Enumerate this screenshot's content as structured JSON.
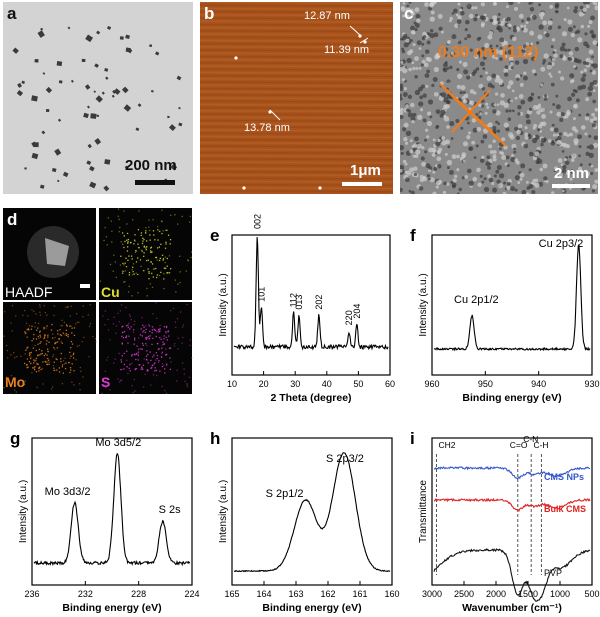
{
  "figure": {
    "panel_a": {
      "label": "a",
      "scale_bar": "200 nm"
    },
    "panel_b": {
      "label": "b",
      "scale_bar": "1μm",
      "measure_1": "12.87 nm",
      "measure_2": "11.39 nm",
      "measure_3": "13.78 nm"
    },
    "panel_c": {
      "label": "c",
      "scale_bar": "2 nm",
      "lattice": "0.30 nm (112)"
    },
    "panel_d": {
      "label": "d",
      "tiles": [
        "HAADF",
        "Cu",
        "Mo",
        "S"
      ],
      "colors": {
        "Cu": "#dede30",
        "Mo": "#e8821e",
        "S": "#e23ad8"
      }
    }
  },
  "chart_data": [
    {
      "id": "e",
      "type": "line",
      "title": "",
      "xlabel": "2 Theta (degree)",
      "ylabel": "Intensity (a.u.)",
      "xlim": [
        10,
        60
      ],
      "xticks": [
        10,
        20,
        30,
        40,
        50,
        60
      ],
      "peaks": [
        {
          "x": 18,
          "h": 1.0,
          "label": "002"
        },
        {
          "x": 19.3,
          "h": 0.35,
          "label": "101"
        },
        {
          "x": 29.5,
          "h": 0.3,
          "label": "112"
        },
        {
          "x": 31.2,
          "h": 0.28,
          "label": "013"
        },
        {
          "x": 37.5,
          "h": 0.28,
          "label": "202"
        },
        {
          "x": 47.0,
          "h": 0.14,
          "label": "220"
        },
        {
          "x": 49.5,
          "h": 0.2,
          "label": "204"
        }
      ]
    },
    {
      "id": "f",
      "type": "line",
      "title": "",
      "xlabel": "Binding energy (eV)",
      "ylabel": "Intensity (a.u.)",
      "xlim": [
        960,
        930
      ],
      "xticks": [
        960,
        950,
        940,
        930
      ],
      "peaks": [
        {
          "x": 952.5,
          "h": 0.32,
          "label": "Cu 2p1/2"
        },
        {
          "x": 932.5,
          "h": 1.0,
          "label": "Cu 2p3/2"
        }
      ]
    },
    {
      "id": "g",
      "type": "line",
      "title": "",
      "xlabel": "Binding energy (eV)",
      "ylabel": "Intensity (a.u.)",
      "xlim": [
        236,
        224
      ],
      "xticks": [
        236,
        232,
        228,
        224
      ],
      "peaks": [
        {
          "x": 232.8,
          "h": 0.55,
          "label": "Mo 3d3/2"
        },
        {
          "x": 229.6,
          "h": 1.0,
          "label": "Mo 3d5/2"
        },
        {
          "x": 226.2,
          "h": 0.38,
          "label": "S 2s"
        }
      ]
    },
    {
      "id": "h",
      "type": "line",
      "title": "",
      "xlabel": "Binding energy (eV)",
      "ylabel": "Intensity (a.u.)",
      "xlim": [
        165,
        160
      ],
      "xticks": [
        165,
        164,
        163,
        162,
        161,
        160
      ],
      "peaks": [
        {
          "x": 162.7,
          "h": 0.6,
          "label": "S 2p1/2"
        },
        {
          "x": 161.5,
          "h": 1.0,
          "label": "S 2p3/2"
        }
      ]
    },
    {
      "id": "i",
      "type": "line",
      "title": "",
      "xlabel": "Wavenumber (cm⁻¹)",
      "ylabel": "Transmittance",
      "xlim": [
        3000,
        500
      ],
      "xticks": [
        3000,
        2500,
        2000,
        1500,
        1000,
        500
      ],
      "series": [
        {
          "name": "CMS NPs",
          "color": "#3355cc"
        },
        {
          "name": "Bulk CMS",
          "color": "#dd2222"
        },
        {
          "name": "PVP",
          "color": "#111111"
        }
      ],
      "annotations": [
        "CH2",
        "C=O",
        "C-N",
        "C-H"
      ]
    }
  ],
  "labels": {
    "e": "e",
    "f": "f",
    "g": "g",
    "h": "h",
    "i": "i"
  }
}
